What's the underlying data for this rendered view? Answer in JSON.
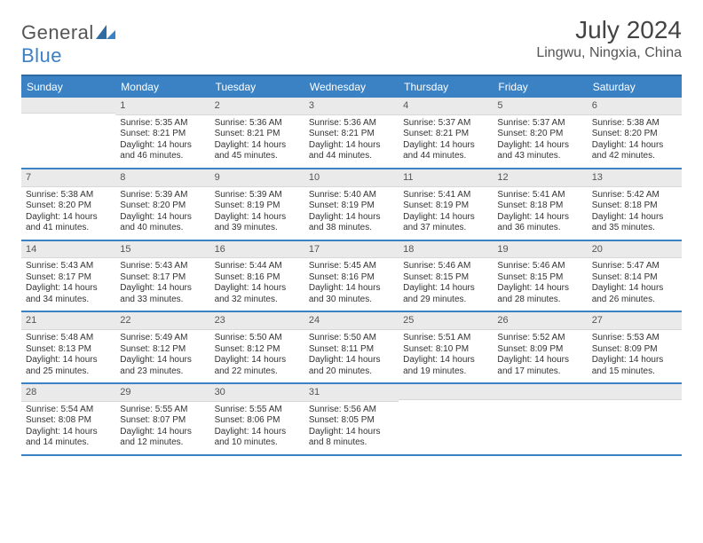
{
  "logo": {
    "text_gray": "General",
    "text_blue": "Blue"
  },
  "title": {
    "month": "July 2024",
    "location": "Lingwu, Ningxia, China"
  },
  "colors": {
    "header_blue": "#3b82c4",
    "daynum_bg": "#eaeaea",
    "border": "#3b82c4",
    "text": "#333333",
    "daynum_text": "#555555"
  },
  "day_names": [
    "Sunday",
    "Monday",
    "Tuesday",
    "Wednesday",
    "Thursday",
    "Friday",
    "Saturday"
  ],
  "weeks": [
    [
      {
        "empty": true
      },
      {
        "n": "1",
        "sr": "5:35 AM",
        "ss": "8:21 PM",
        "dl": "14 hours and 46 minutes."
      },
      {
        "n": "2",
        "sr": "5:36 AM",
        "ss": "8:21 PM",
        "dl": "14 hours and 45 minutes."
      },
      {
        "n": "3",
        "sr": "5:36 AM",
        "ss": "8:21 PM",
        "dl": "14 hours and 44 minutes."
      },
      {
        "n": "4",
        "sr": "5:37 AM",
        "ss": "8:21 PM",
        "dl": "14 hours and 44 minutes."
      },
      {
        "n": "5",
        "sr": "5:37 AM",
        "ss": "8:20 PM",
        "dl": "14 hours and 43 minutes."
      },
      {
        "n": "6",
        "sr": "5:38 AM",
        "ss": "8:20 PM",
        "dl": "14 hours and 42 minutes."
      }
    ],
    [
      {
        "n": "7",
        "sr": "5:38 AM",
        "ss": "8:20 PM",
        "dl": "14 hours and 41 minutes."
      },
      {
        "n": "8",
        "sr": "5:39 AM",
        "ss": "8:20 PM",
        "dl": "14 hours and 40 minutes."
      },
      {
        "n": "9",
        "sr": "5:39 AM",
        "ss": "8:19 PM",
        "dl": "14 hours and 39 minutes."
      },
      {
        "n": "10",
        "sr": "5:40 AM",
        "ss": "8:19 PM",
        "dl": "14 hours and 38 minutes."
      },
      {
        "n": "11",
        "sr": "5:41 AM",
        "ss": "8:19 PM",
        "dl": "14 hours and 37 minutes."
      },
      {
        "n": "12",
        "sr": "5:41 AM",
        "ss": "8:18 PM",
        "dl": "14 hours and 36 minutes."
      },
      {
        "n": "13",
        "sr": "5:42 AM",
        "ss": "8:18 PM",
        "dl": "14 hours and 35 minutes."
      }
    ],
    [
      {
        "n": "14",
        "sr": "5:43 AM",
        "ss": "8:17 PM",
        "dl": "14 hours and 34 minutes."
      },
      {
        "n": "15",
        "sr": "5:43 AM",
        "ss": "8:17 PM",
        "dl": "14 hours and 33 minutes."
      },
      {
        "n": "16",
        "sr": "5:44 AM",
        "ss": "8:16 PM",
        "dl": "14 hours and 32 minutes."
      },
      {
        "n": "17",
        "sr": "5:45 AM",
        "ss": "8:16 PM",
        "dl": "14 hours and 30 minutes."
      },
      {
        "n": "18",
        "sr": "5:46 AM",
        "ss": "8:15 PM",
        "dl": "14 hours and 29 minutes."
      },
      {
        "n": "19",
        "sr": "5:46 AM",
        "ss": "8:15 PM",
        "dl": "14 hours and 28 minutes."
      },
      {
        "n": "20",
        "sr": "5:47 AM",
        "ss": "8:14 PM",
        "dl": "14 hours and 26 minutes."
      }
    ],
    [
      {
        "n": "21",
        "sr": "5:48 AM",
        "ss": "8:13 PM",
        "dl": "14 hours and 25 minutes."
      },
      {
        "n": "22",
        "sr": "5:49 AM",
        "ss": "8:12 PM",
        "dl": "14 hours and 23 minutes."
      },
      {
        "n": "23",
        "sr": "5:50 AM",
        "ss": "8:12 PM",
        "dl": "14 hours and 22 minutes."
      },
      {
        "n": "24",
        "sr": "5:50 AM",
        "ss": "8:11 PM",
        "dl": "14 hours and 20 minutes."
      },
      {
        "n": "25",
        "sr": "5:51 AM",
        "ss": "8:10 PM",
        "dl": "14 hours and 19 minutes."
      },
      {
        "n": "26",
        "sr": "5:52 AM",
        "ss": "8:09 PM",
        "dl": "14 hours and 17 minutes."
      },
      {
        "n": "27",
        "sr": "5:53 AM",
        "ss": "8:09 PM",
        "dl": "14 hours and 15 minutes."
      }
    ],
    [
      {
        "n": "28",
        "sr": "5:54 AM",
        "ss": "8:08 PM",
        "dl": "14 hours and 14 minutes."
      },
      {
        "n": "29",
        "sr": "5:55 AM",
        "ss": "8:07 PM",
        "dl": "14 hours and 12 minutes."
      },
      {
        "n": "30",
        "sr": "5:55 AM",
        "ss": "8:06 PM",
        "dl": "14 hours and 10 minutes."
      },
      {
        "n": "31",
        "sr": "5:56 AM",
        "ss": "8:05 PM",
        "dl": "14 hours and 8 minutes."
      },
      {
        "empty": true
      },
      {
        "empty": true
      },
      {
        "empty": true
      }
    ]
  ],
  "labels": {
    "sunrise": "Sunrise:",
    "sunset": "Sunset:",
    "daylight": "Daylight:"
  }
}
